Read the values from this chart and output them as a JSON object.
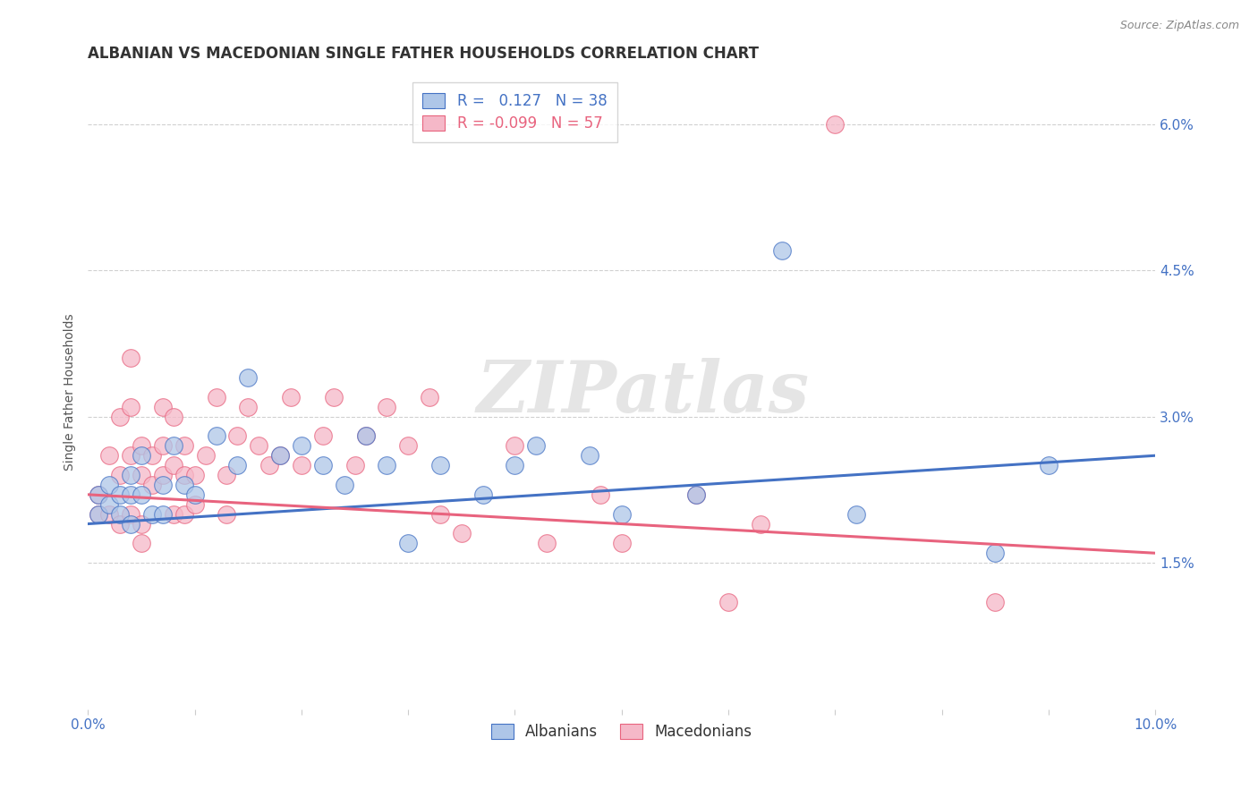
{
  "title": "ALBANIAN VS MACEDONIAN SINGLE FATHER HOUSEHOLDS CORRELATION CHART",
  "source": "Source: ZipAtlas.com",
  "ylabel": "Single Father Households",
  "xlim": [
    0.0,
    0.1
  ],
  "ylim": [
    0.0,
    0.065
  ],
  "ytick_vals": [
    0.015,
    0.03,
    0.045,
    0.06
  ],
  "ytick_labels_right": [
    "1.5%",
    "3.0%",
    "4.5%",
    "6.0%"
  ],
  "grid_ytick_vals": [
    0.015,
    0.03,
    0.045,
    0.06
  ],
  "xtick_vals": [
    0.0,
    0.01,
    0.02,
    0.03,
    0.04,
    0.05,
    0.06,
    0.07,
    0.08,
    0.09,
    0.1
  ],
  "xtick_labels": [
    "0.0%",
    "",
    "",
    "",
    "",
    "",
    "",
    "",
    "",
    "",
    "10.0%"
  ],
  "albanian_color": "#aec6e8",
  "macedonian_color": "#f5b8c8",
  "line_albanian_color": "#4472c4",
  "line_macedonian_color": "#e8637e",
  "R_albanian": 0.127,
  "N_albanian": 38,
  "R_macedonian": -0.099,
  "N_macedonian": 57,
  "alb_trend_x0": 0.0,
  "alb_trend_y0": 0.019,
  "alb_trend_x1": 0.1,
  "alb_trend_y1": 0.026,
  "mac_trend_x0": 0.0,
  "mac_trend_y0": 0.022,
  "mac_trend_x1": 0.1,
  "mac_trend_y1": 0.016,
  "albanian_x": [
    0.001,
    0.001,
    0.002,
    0.002,
    0.003,
    0.003,
    0.004,
    0.004,
    0.004,
    0.005,
    0.005,
    0.006,
    0.007,
    0.007,
    0.008,
    0.009,
    0.01,
    0.012,
    0.014,
    0.015,
    0.018,
    0.02,
    0.022,
    0.024,
    0.026,
    0.028,
    0.03,
    0.033,
    0.037,
    0.04,
    0.042,
    0.047,
    0.05,
    0.057,
    0.065,
    0.072,
    0.085,
    0.09
  ],
  "albanian_y": [
    0.022,
    0.02,
    0.023,
    0.021,
    0.022,
    0.02,
    0.024,
    0.022,
    0.019,
    0.026,
    0.022,
    0.02,
    0.023,
    0.02,
    0.027,
    0.023,
    0.022,
    0.028,
    0.025,
    0.034,
    0.026,
    0.027,
    0.025,
    0.023,
    0.028,
    0.025,
    0.017,
    0.025,
    0.022,
    0.025,
    0.027,
    0.026,
    0.02,
    0.022,
    0.047,
    0.02,
    0.016,
    0.025
  ],
  "macedonian_x": [
    0.001,
    0.001,
    0.002,
    0.002,
    0.003,
    0.003,
    0.003,
    0.004,
    0.004,
    0.004,
    0.004,
    0.005,
    0.005,
    0.005,
    0.005,
    0.006,
    0.006,
    0.007,
    0.007,
    0.007,
    0.008,
    0.008,
    0.008,
    0.009,
    0.009,
    0.009,
    0.01,
    0.01,
    0.011,
    0.012,
    0.013,
    0.013,
    0.014,
    0.015,
    0.016,
    0.017,
    0.018,
    0.019,
    0.02,
    0.022,
    0.023,
    0.025,
    0.026,
    0.028,
    0.03,
    0.032,
    0.033,
    0.035,
    0.04,
    0.043,
    0.048,
    0.05,
    0.057,
    0.06,
    0.063,
    0.07,
    0.085
  ],
  "macedonian_y": [
    0.022,
    0.02,
    0.026,
    0.02,
    0.03,
    0.024,
    0.019,
    0.036,
    0.031,
    0.026,
    0.02,
    0.024,
    0.027,
    0.019,
    0.017,
    0.026,
    0.023,
    0.031,
    0.027,
    0.024,
    0.03,
    0.025,
    0.02,
    0.027,
    0.024,
    0.02,
    0.024,
    0.021,
    0.026,
    0.032,
    0.024,
    0.02,
    0.028,
    0.031,
    0.027,
    0.025,
    0.026,
    0.032,
    0.025,
    0.028,
    0.032,
    0.025,
    0.028,
    0.031,
    0.027,
    0.032,
    0.02,
    0.018,
    0.027,
    0.017,
    0.022,
    0.017,
    0.022,
    0.011,
    0.019,
    0.06,
    0.011
  ],
  "watermark": "ZIPatlas",
  "background_color": "#ffffff",
  "grid_color": "#d0d0d0"
}
